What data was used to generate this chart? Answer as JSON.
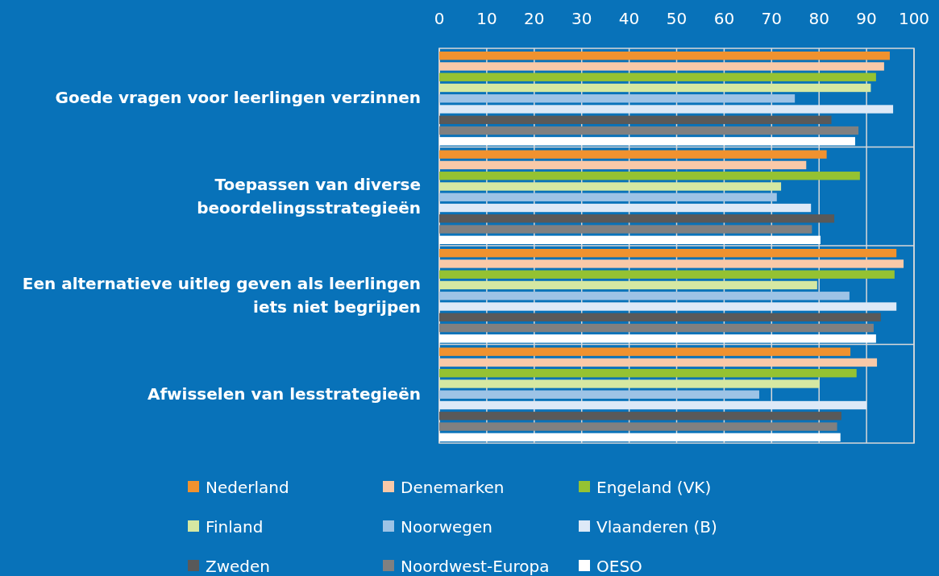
{
  "chart_data": {
    "type": "bar",
    "orientation": "horizontal",
    "categories": [
      "Goede vragen voor leerlingen verzinnen",
      "Toepassen van diverse\nbeoordelingsstrategieën",
      "Een alternatieve uitleg geven als leerlingen\niets niet begrijpen",
      "Afwisselen van lesstrategieën"
    ],
    "series": [
      {
        "name": "Nederland",
        "color": "#f0922f",
        "values": [
          94.9,
          81.6,
          96.3,
          86.6
        ]
      },
      {
        "name": "Denemarken",
        "color": "#f9c9a8",
        "values": [
          93.7,
          77.3,
          97.8,
          92.2
        ]
      },
      {
        "name": "Engeland (VK)",
        "color": "#95c232",
        "values": [
          92.0,
          88.6,
          95.9,
          87.9
        ]
      },
      {
        "name": "Finland",
        "color": "#d5e8a2",
        "values": [
          90.9,
          72.0,
          79.6,
          80.1
        ]
      },
      {
        "name": "Noorwegen",
        "color": "#9dc3e6",
        "values": [
          74.9,
          71.1,
          86.4,
          67.4
        ]
      },
      {
        "name": "Vlaanderen (B)",
        "color": "#dde9f7",
        "values": [
          95.6,
          78.3,
          96.3,
          90.0
        ]
      },
      {
        "name": "Zweden",
        "color": "#595959",
        "values": [
          82.6,
          83.2,
          93.0,
          84.7
        ]
      },
      {
        "name": "Noordwest-Europa",
        "color": "#808080",
        "values": [
          88.3,
          78.5,
          91.5,
          83.8
        ]
      },
      {
        "name": "OESO",
        "color": "#ffffff",
        "values": [
          87.6,
          80.3,
          92.0,
          84.5
        ]
      }
    ],
    "xlim": [
      0,
      100
    ],
    "xticks": [
      0,
      10,
      20,
      30,
      40,
      50,
      60,
      70,
      80,
      90,
      100
    ],
    "grid": "x",
    "legend": "bottom"
  }
}
